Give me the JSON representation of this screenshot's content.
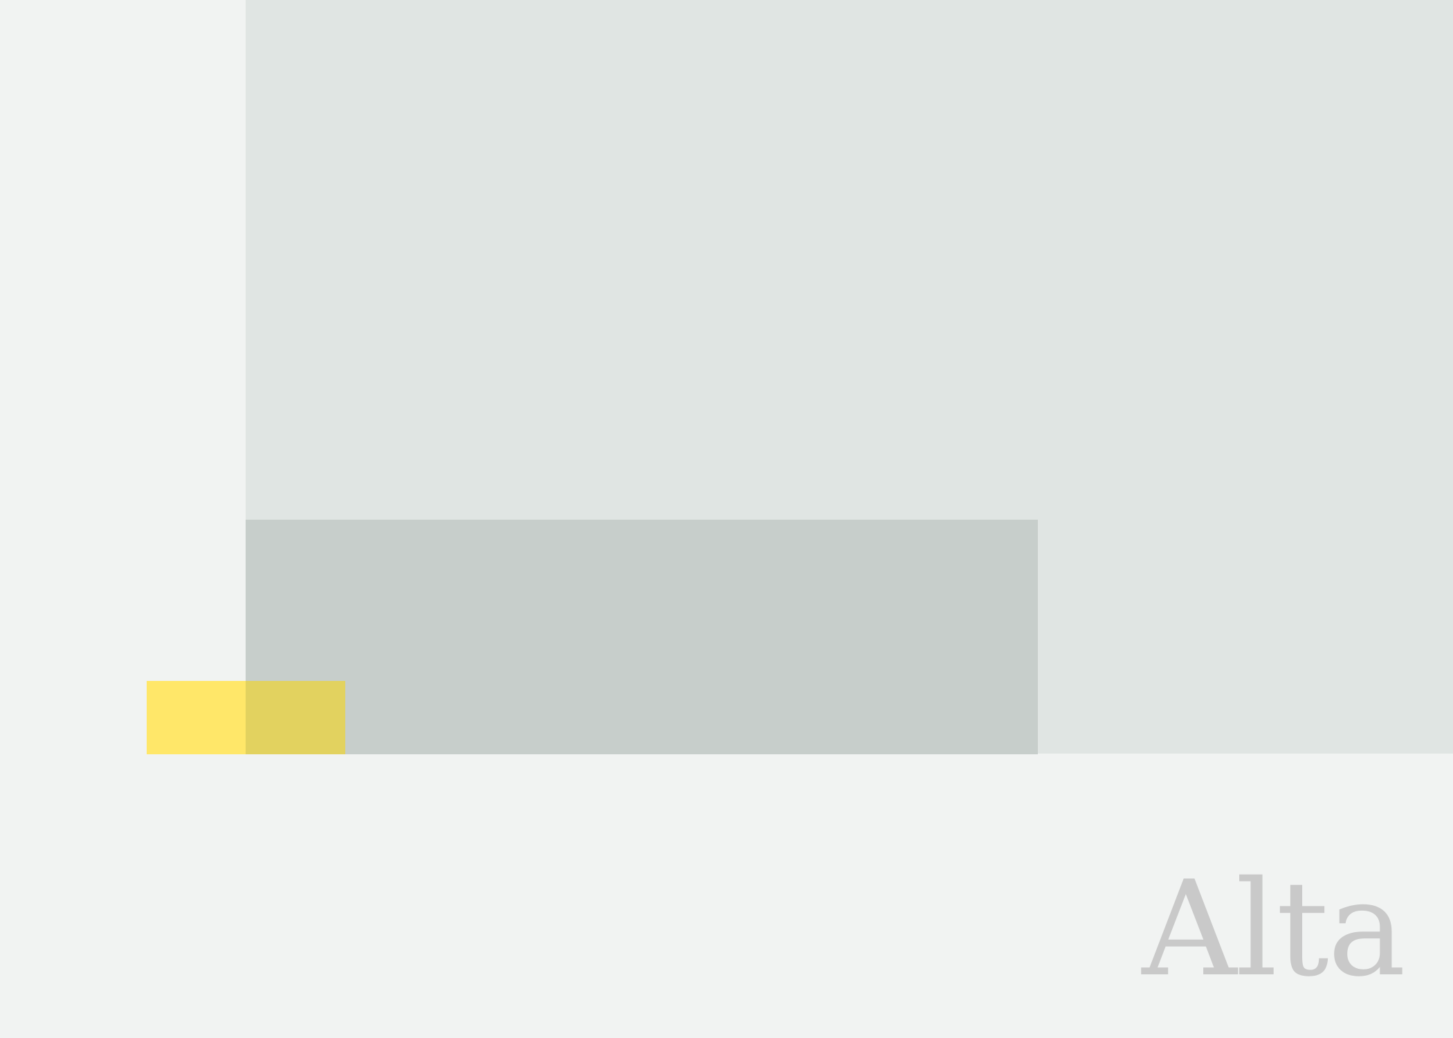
{
  "brand": {
    "wordmark": "Alta"
  },
  "colors": {
    "background": "#f1f3f2",
    "panel_light": "#e0e5e3",
    "panel_dark": "#c7cecb",
    "accent_yellow": "#ffe769",
    "accent_overlap": "#e2d25f",
    "wordmark": "#c9c9c9"
  }
}
